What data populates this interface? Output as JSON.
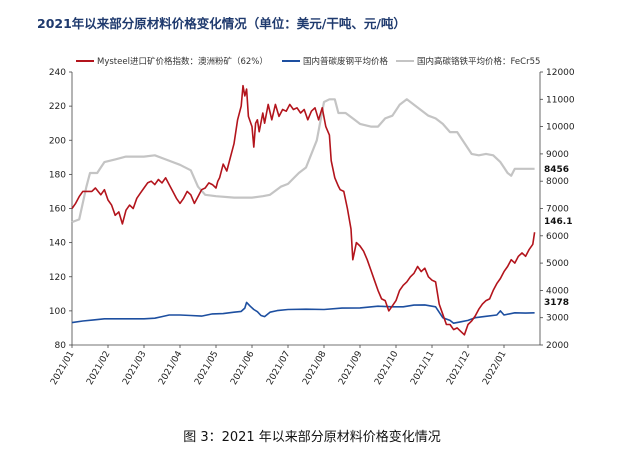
{
  "title": "2021年以来部分原材料价格变化情况（单位：美元/干吨、元/吨）",
  "caption": "图 3：2021 年以来部分原材料价格变化情况",
  "chart_data": {
    "type": "line",
    "categories": [
      "2021/01",
      "2021/02",
      "2021/03",
      "2021/04",
      "2021/05",
      "2021/06",
      "2021/07",
      "2021/08",
      "2021/09",
      "2021/10",
      "2021/11",
      "2021/12",
      "2022/01"
    ],
    "y_left": {
      "ylim": [
        80,
        240
      ],
      "ticks": [
        80,
        100,
        120,
        140,
        160,
        180,
        200,
        220,
        240
      ]
    },
    "y_right": {
      "ylim": [
        2000,
        12000
      ],
      "ticks": [
        2000,
        3000,
        4000,
        5000,
        6000,
        7000,
        8000,
        9000,
        10000,
        11000,
        12000
      ]
    },
    "grid": false,
    "legend_position": "top",
    "series": [
      {
        "name": "Mysteel进口矿价格指数：澳洲粉矿（62%）",
        "axis": "left",
        "color": "#b3141c",
        "end_label": "146.1",
        "points": [
          [
            0,
            160
          ],
          [
            0.1,
            163
          ],
          [
            0.2,
            167
          ],
          [
            0.3,
            170
          ],
          [
            0.45,
            170
          ],
          [
            0.55,
            170
          ],
          [
            0.65,
            172
          ],
          [
            0.8,
            168
          ],
          [
            0.9,
            171
          ],
          [
            1.0,
            165
          ],
          [
            1.1,
            162
          ],
          [
            1.2,
            156
          ],
          [
            1.3,
            158
          ],
          [
            1.4,
            151
          ],
          [
            1.5,
            159
          ],
          [
            1.6,
            162
          ],
          [
            1.7,
            160
          ],
          [
            1.8,
            166
          ],
          [
            1.9,
            169
          ],
          [
            2.0,
            172
          ],
          [
            2.1,
            175
          ],
          [
            2.2,
            176
          ],
          [
            2.3,
            174
          ],
          [
            2.4,
            177
          ],
          [
            2.5,
            175
          ],
          [
            2.6,
            178
          ],
          [
            2.7,
            174
          ],
          [
            2.8,
            170
          ],
          [
            2.9,
            166
          ],
          [
            3.0,
            163
          ],
          [
            3.1,
            166
          ],
          [
            3.2,
            170
          ],
          [
            3.3,
            168
          ],
          [
            3.4,
            163
          ],
          [
            3.5,
            167
          ],
          [
            3.6,
            171
          ],
          [
            3.7,
            172
          ],
          [
            3.8,
            175
          ],
          [
            3.9,
            174
          ],
          [
            4.0,
            172
          ],
          [
            4.05,
            176
          ],
          [
            4.1,
            178
          ],
          [
            4.2,
            186
          ],
          [
            4.3,
            182
          ],
          [
            4.4,
            190
          ],
          [
            4.5,
            198
          ],
          [
            4.6,
            212
          ],
          [
            4.7,
            220
          ],
          [
            4.75,
            232
          ],
          [
            4.8,
            226
          ],
          [
            4.85,
            230
          ],
          [
            4.9,
            214
          ],
          [
            5.0,
            208
          ],
          [
            5.05,
            196
          ],
          [
            5.1,
            210
          ],
          [
            5.15,
            212
          ],
          [
            5.2,
            205
          ],
          [
            5.3,
            216
          ],
          [
            5.35,
            210
          ],
          [
            5.45,
            221
          ],
          [
            5.55,
            212
          ],
          [
            5.65,
            221
          ],
          [
            5.75,
            214
          ],
          [
            5.85,
            218
          ],
          [
            5.95,
            217
          ],
          [
            6.05,
            221
          ],
          [
            6.15,
            218
          ],
          [
            6.25,
            219
          ],
          [
            6.35,
            216
          ],
          [
            6.45,
            218
          ],
          [
            6.55,
            212
          ],
          [
            6.65,
            217
          ],
          [
            6.75,
            219
          ],
          [
            6.85,
            212
          ],
          [
            6.95,
            219
          ],
          [
            7.05,
            208
          ],
          [
            7.15,
            203
          ],
          [
            7.2,
            188
          ],
          [
            7.3,
            178
          ],
          [
            7.4,
            173
          ],
          [
            7.45,
            171
          ],
          [
            7.55,
            170
          ],
          [
            7.65,
            160
          ],
          [
            7.75,
            148
          ],
          [
            7.8,
            130
          ],
          [
            7.85,
            135
          ],
          [
            7.9,
            140
          ],
          [
            8.0,
            138
          ],
          [
            8.1,
            135
          ],
          [
            8.2,
            130
          ],
          [
            8.3,
            124
          ],
          [
            8.4,
            118
          ],
          [
            8.5,
            112
          ],
          [
            8.6,
            107
          ],
          [
            8.7,
            106
          ],
          [
            8.8,
            100
          ],
          [
            8.9,
            103
          ],
          [
            9.0,
            106
          ],
          [
            9.1,
            112
          ],
          [
            9.2,
            115
          ],
          [
            9.3,
            117
          ],
          [
            9.4,
            120
          ],
          [
            9.5,
            122
          ],
          [
            9.6,
            126
          ],
          [
            9.7,
            123
          ],
          [
            9.8,
            125
          ],
          [
            9.9,
            120
          ],
          [
            10.0,
            118
          ],
          [
            10.1,
            117
          ],
          [
            10.2,
            104
          ],
          [
            10.3,
            98
          ],
          [
            10.4,
            92
          ],
          [
            10.5,
            92
          ],
          [
            10.6,
            89
          ],
          [
            10.7,
            90
          ],
          [
            10.8,
            88
          ],
          [
            10.9,
            86
          ],
          [
            11.0,
            92
          ],
          [
            11.1,
            94
          ],
          [
            11.2,
            97
          ],
          [
            11.3,
            101
          ],
          [
            11.4,
            104
          ],
          [
            11.5,
            106
          ],
          [
            11.6,
            107
          ],
          [
            11.7,
            112
          ],
          [
            11.8,
            116
          ],
          [
            11.9,
            119
          ],
          [
            12.0,
            123
          ],
          [
            12.1,
            126
          ],
          [
            12.2,
            130
          ],
          [
            12.3,
            128
          ],
          [
            12.4,
            132
          ],
          [
            12.5,
            134
          ],
          [
            12.6,
            132
          ],
          [
            12.7,
            136
          ],
          [
            12.8,
            139
          ],
          [
            12.85,
            146.1
          ]
        ]
      },
      {
        "name": "国内普碳废钢平均价格",
        "axis": "right",
        "color": "#1d4fa0",
        "end_label": "3178",
        "points": [
          [
            0,
            2820
          ],
          [
            0.3,
            2880
          ],
          [
            0.6,
            2920
          ],
          [
            0.9,
            2960
          ],
          [
            1.5,
            2960
          ],
          [
            2.0,
            2960
          ],
          [
            2.3,
            2980
          ],
          [
            2.5,
            3040
          ],
          [
            2.7,
            3100
          ],
          [
            3.0,
            3100
          ],
          [
            3.3,
            3080
          ],
          [
            3.6,
            3060
          ],
          [
            3.9,
            3140
          ],
          [
            4.2,
            3150
          ],
          [
            4.5,
            3200
          ],
          [
            4.7,
            3230
          ],
          [
            4.8,
            3350
          ],
          [
            4.85,
            3560
          ],
          [
            4.95,
            3420
          ],
          [
            5.05,
            3300
          ],
          [
            5.15,
            3220
          ],
          [
            5.25,
            3080
          ],
          [
            5.35,
            3040
          ],
          [
            5.5,
            3200
          ],
          [
            5.7,
            3260
          ],
          [
            6.0,
            3300
          ],
          [
            6.5,
            3310
          ],
          [
            7.0,
            3300
          ],
          [
            7.5,
            3350
          ],
          [
            8.0,
            3360
          ],
          [
            8.5,
            3420
          ],
          [
            8.9,
            3400
          ],
          [
            9.2,
            3400
          ],
          [
            9.5,
            3460
          ],
          [
            9.8,
            3470
          ],
          [
            10.1,
            3400
          ],
          [
            10.3,
            3000
          ],
          [
            10.5,
            2900
          ],
          [
            10.6,
            2800
          ],
          [
            10.8,
            2850
          ],
          [
            11.0,
            2900
          ],
          [
            11.2,
            3000
          ],
          [
            11.5,
            3050
          ],
          [
            11.8,
            3100
          ],
          [
            11.9,
            3250
          ],
          [
            12.0,
            3100
          ],
          [
            12.3,
            3180
          ],
          [
            12.6,
            3170
          ],
          [
            12.85,
            3178
          ]
        ]
      },
      {
        "name": "国内高碳铬铁平均价格：FeCr55",
        "axis": "right",
        "color": "#c4c4c4",
        "end_label": "8456",
        "points": [
          [
            0,
            6500
          ],
          [
            0.2,
            6600
          ],
          [
            0.3,
            7200
          ],
          [
            0.4,
            7800
          ],
          [
            0.5,
            8300
          ],
          [
            0.6,
            8300
          ],
          [
            0.7,
            8300
          ],
          [
            0.8,
            8500
          ],
          [
            0.9,
            8700
          ],
          [
            1.2,
            8800
          ],
          [
            1.5,
            8900
          ],
          [
            2.0,
            8900
          ],
          [
            2.3,
            8950
          ],
          [
            2.6,
            8800
          ],
          [
            3.0,
            8600
          ],
          [
            3.3,
            8400
          ],
          [
            3.5,
            7800
          ],
          [
            3.7,
            7500
          ],
          [
            4.0,
            7450
          ],
          [
            4.5,
            7400
          ],
          [
            5.0,
            7400
          ],
          [
            5.3,
            7450
          ],
          [
            5.5,
            7500
          ],
          [
            5.8,
            7800
          ],
          [
            6.0,
            7900
          ],
          [
            6.3,
            8300
          ],
          [
            6.5,
            8500
          ],
          [
            6.8,
            9500
          ],
          [
            7.0,
            10900
          ],
          [
            7.15,
            11000
          ],
          [
            7.3,
            11000
          ],
          [
            7.4,
            10500
          ],
          [
            7.6,
            10500
          ],
          [
            7.8,
            10300
          ],
          [
            8.0,
            10100
          ],
          [
            8.3,
            10000
          ],
          [
            8.5,
            10000
          ],
          [
            8.7,
            10300
          ],
          [
            8.9,
            10400
          ],
          [
            9.1,
            10800
          ],
          [
            9.3,
            11000
          ],
          [
            9.5,
            10800
          ],
          [
            9.7,
            10600
          ],
          [
            9.9,
            10400
          ],
          [
            10.1,
            10300
          ],
          [
            10.3,
            10100
          ],
          [
            10.5,
            9800
          ],
          [
            10.7,
            9800
          ],
          [
            10.9,
            9400
          ],
          [
            11.1,
            9000
          ],
          [
            11.3,
            8950
          ],
          [
            11.5,
            9000
          ],
          [
            11.7,
            8950
          ],
          [
            11.9,
            8700
          ],
          [
            12.0,
            8500
          ],
          [
            12.1,
            8300
          ],
          [
            12.2,
            8200
          ],
          [
            12.3,
            8456
          ],
          [
            12.5,
            8456
          ],
          [
            12.85,
            8456
          ]
        ]
      }
    ]
  }
}
